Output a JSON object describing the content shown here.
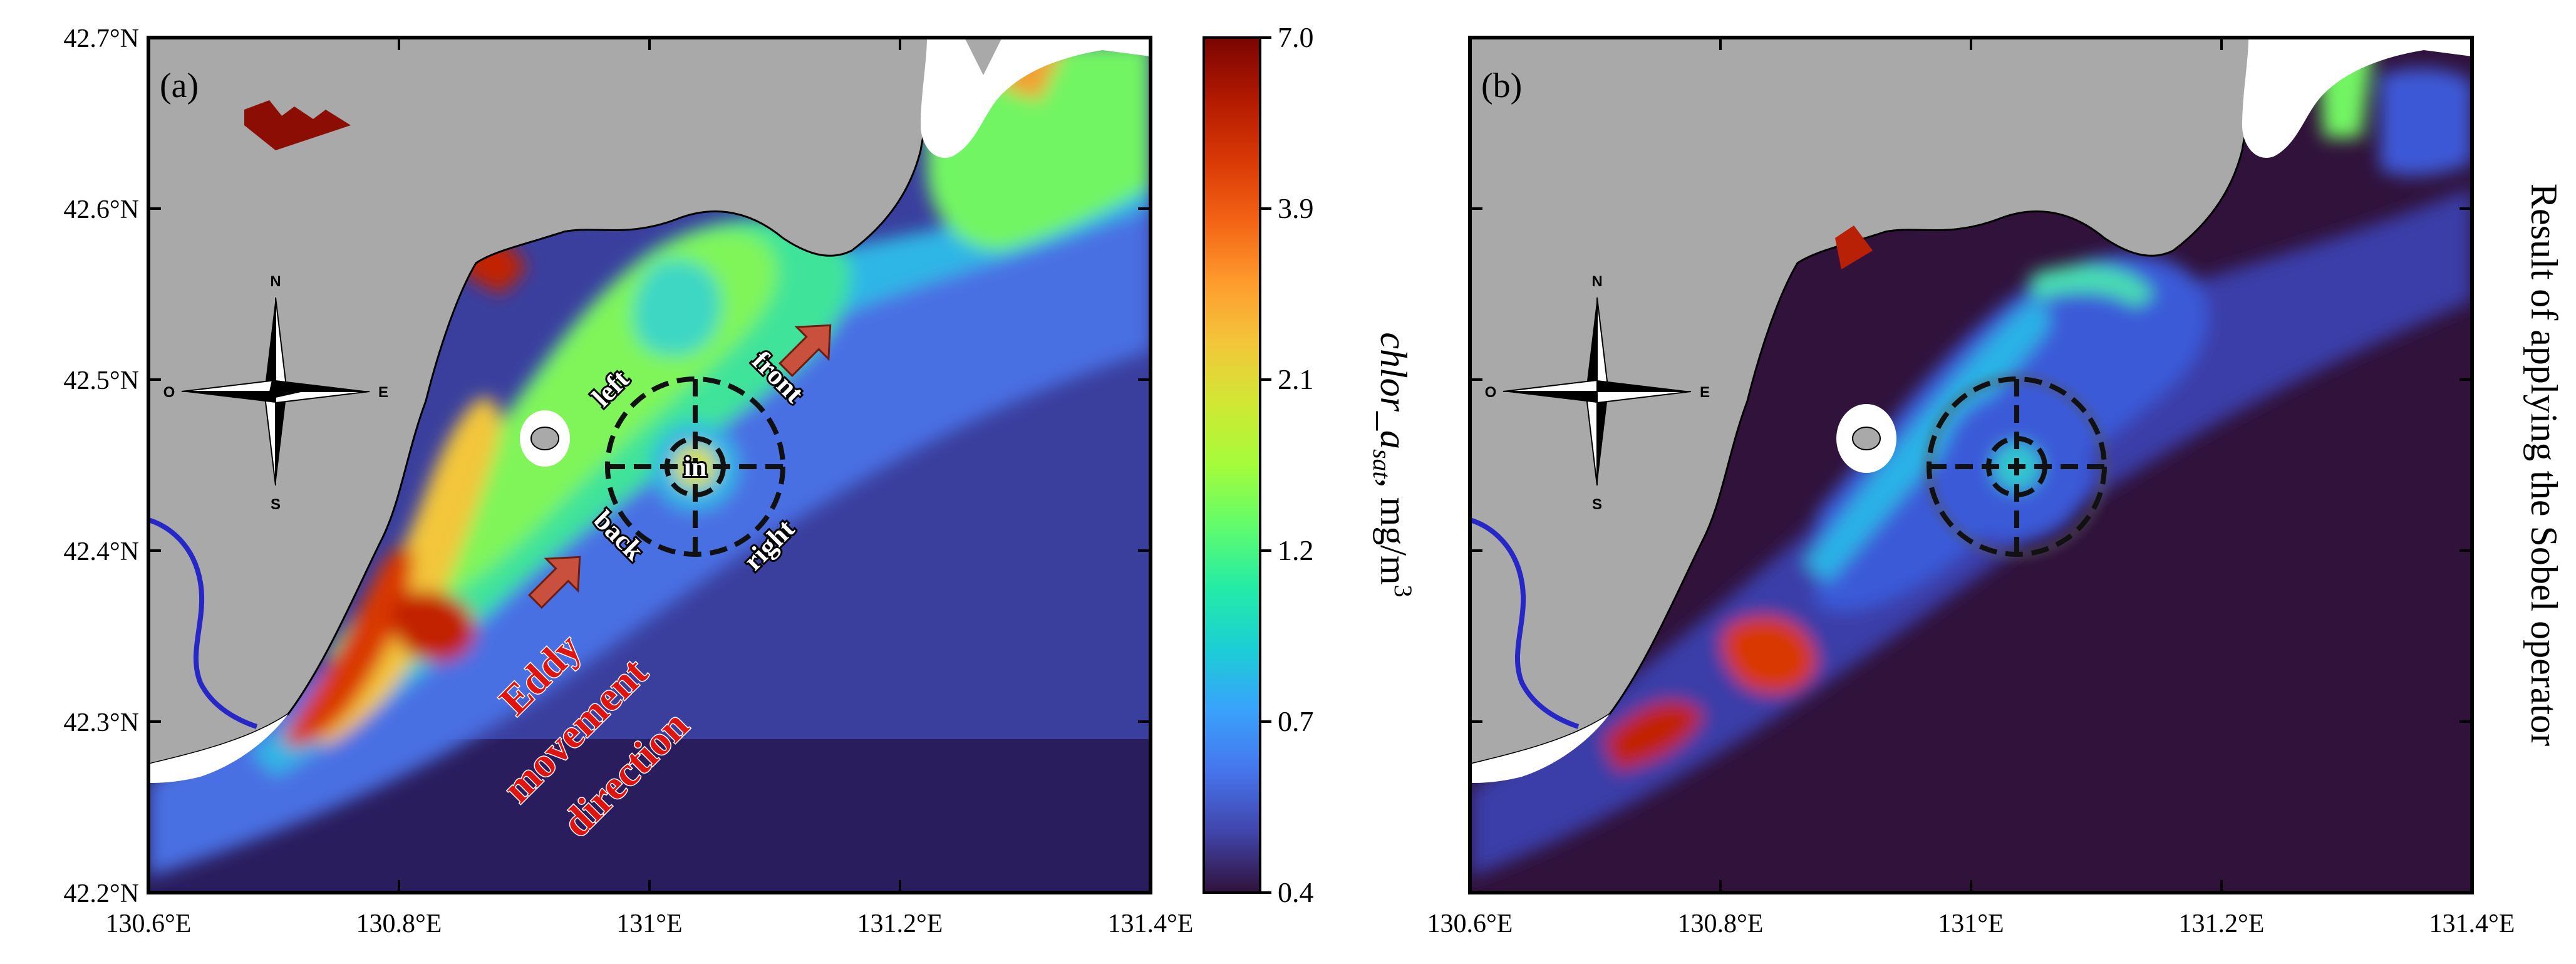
{
  "panel_a": {
    "label": "(a)",
    "x_ticks": [
      "130.6°E",
      "130.8°E",
      "131°E",
      "131.2°E",
      "131.4°E"
    ],
    "y_ticks": [
      "42.7°N",
      "42.6°N",
      "42.5°N",
      "42.4°N",
      "42.3°N",
      "42.2°N"
    ],
    "eddy_labels": {
      "in": "in",
      "left": "left",
      "front": "front",
      "back": "back",
      "right": "right"
    },
    "movement_text": [
      "Eddy",
      "movement",
      "direction"
    ]
  },
  "panel_b": {
    "label": "(b)",
    "x_ticks": [
      "130.6°E",
      "130.8°E",
      "131°E",
      "131.2°E",
      "131.4°E"
    ],
    "side_title": "Result of applying the Sobel operator"
  },
  "compass": {
    "n": "N",
    "s": "S",
    "e": "E",
    "w": "O"
  },
  "colorbar": {
    "ticks": [
      "7.0",
      "3.9",
      "2.1",
      "1.2",
      "0.7",
      "0.4"
    ],
    "label_main": "chlor",
    "label_sub": "a",
    "label_subscript": "sat",
    "label_unit": ", mg/m",
    "label_power": "3",
    "colors": [
      "#30123b",
      "#4145ab",
      "#4675ed",
      "#39a2fc",
      "#1bcfd4",
      "#24eca6",
      "#61fc6c",
      "#a4fc3b",
      "#d1e834",
      "#f3c63a",
      "#fe9b2d",
      "#f36315",
      "#d93806",
      "#b11901",
      "#7a0402"
    ]
  },
  "colors": {
    "land": "#a9a9a9",
    "deep_sea_a": "#3a3f9e",
    "deep_sea_b": "#30123b",
    "river": "#2727c8",
    "arrow": "#c8503c",
    "movement_text": "#e0140f"
  }
}
